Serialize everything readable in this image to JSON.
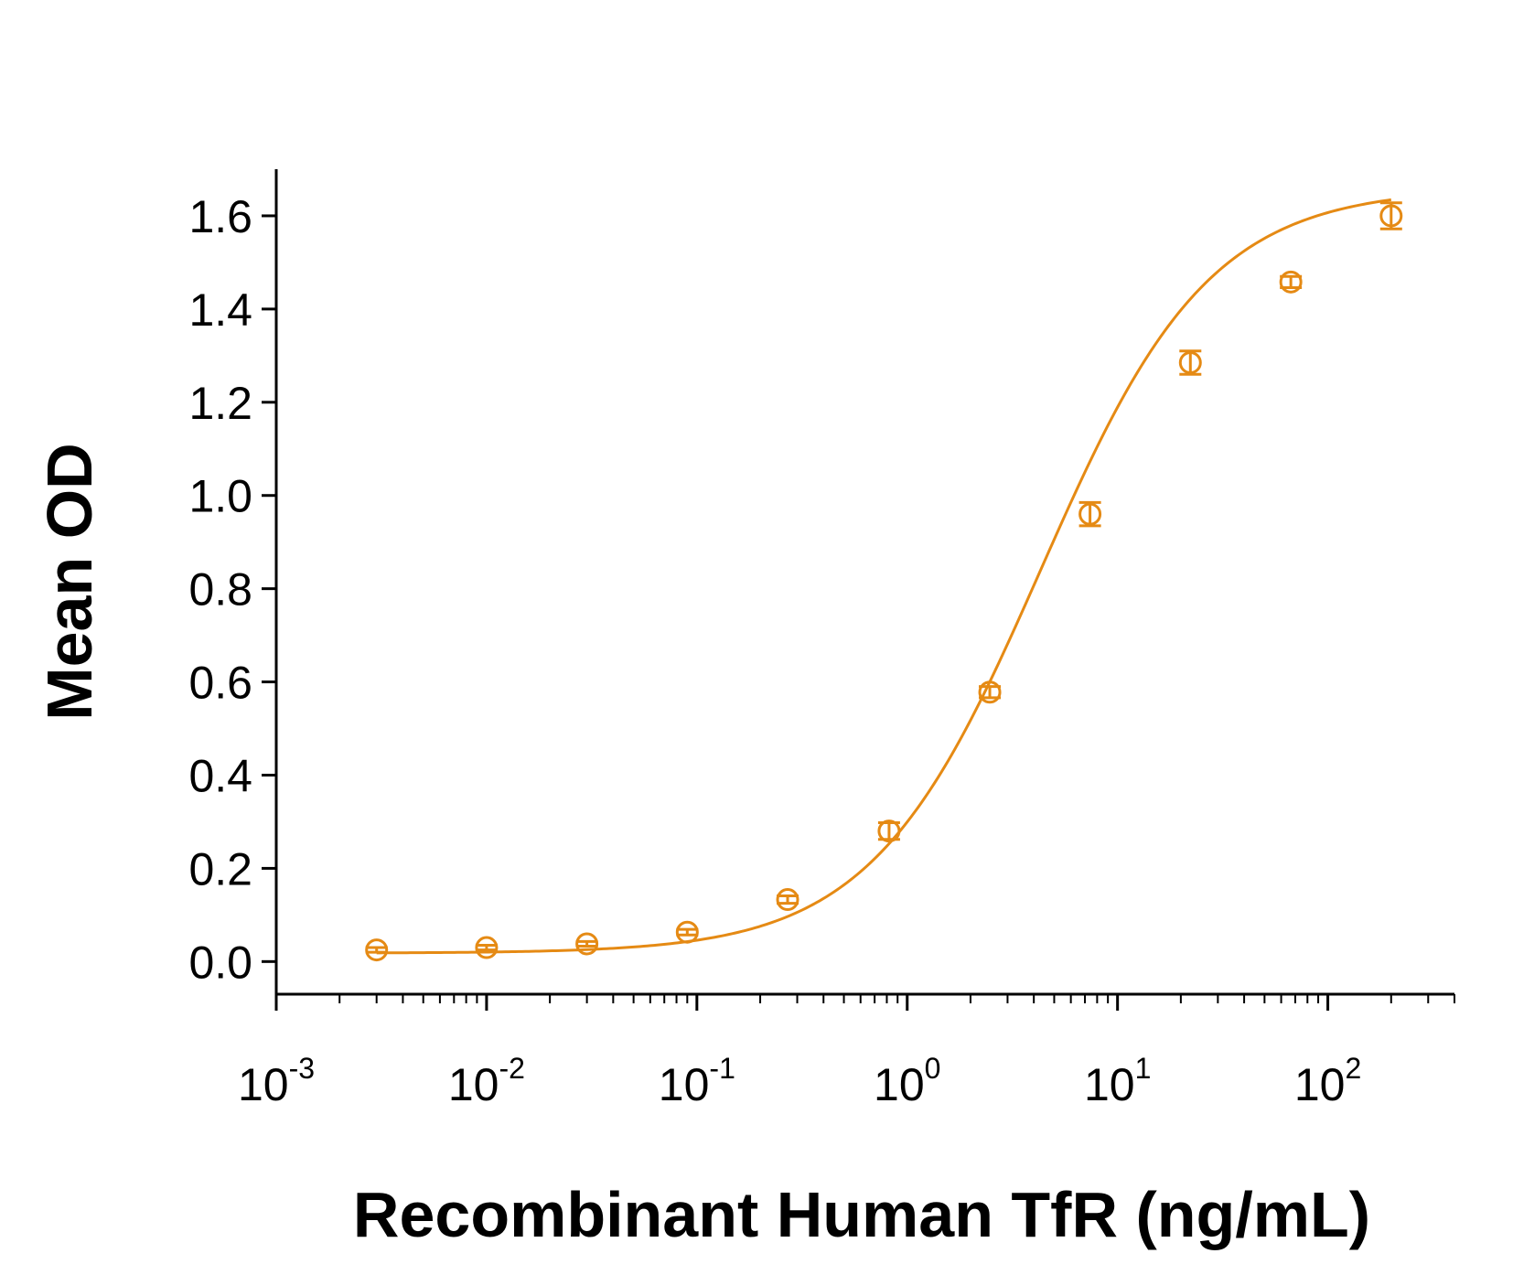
{
  "chart_data": {
    "type": "scatter",
    "title": "",
    "xlabel": "Recombinant Human TfR (ng/mL)",
    "ylabel": "Mean OD",
    "x_scale": "log",
    "xlim": [
      0.001,
      400
    ],
    "ylim": [
      -0.07,
      1.7
    ],
    "grid": false,
    "legend": "none",
    "y_ticks": [
      "0.0",
      "0.2",
      "0.4",
      "0.6",
      "0.8",
      "1.0",
      "1.2",
      "1.4",
      "1.6"
    ],
    "x_ticks": [
      {
        "base": "10",
        "exp": "-3"
      },
      {
        "base": "10",
        "exp": "-2"
      },
      {
        "base": "10",
        "exp": "-1"
      },
      {
        "base": "10",
        "exp": "0"
      },
      {
        "base": "10",
        "exp": "1"
      },
      {
        "base": "10",
        "exp": "2"
      }
    ],
    "series": [
      {
        "points": [
          {
            "x": 0.003,
            "y": 0.025,
            "err": 0.005
          },
          {
            "x": 0.01,
            "y": 0.03,
            "err": 0.005
          },
          {
            "x": 0.03,
            "y": 0.038,
            "err": 0.005
          },
          {
            "x": 0.09,
            "y": 0.063,
            "err": 0.006
          },
          {
            "x": 0.27,
            "y": 0.133,
            "err": 0.008
          },
          {
            "x": 0.82,
            "y": 0.28,
            "err": 0.018
          },
          {
            "x": 2.47,
            "y": 0.578,
            "err": 0.012
          },
          {
            "x": 7.4,
            "y": 0.96,
            "err": 0.025
          },
          {
            "x": 22.2,
            "y": 1.285,
            "err": 0.025
          },
          {
            "x": 66.7,
            "y": 1.458,
            "err": 0.012
          },
          {
            "x": 200,
            "y": 1.6,
            "err": 0.028
          }
        ],
        "fit": {
          "type": "4PL",
          "bottom": 0.018,
          "top": 1.66,
          "ec50": 4.3,
          "hill": 1.08
        }
      }
    ],
    "color": "#E58A14"
  }
}
